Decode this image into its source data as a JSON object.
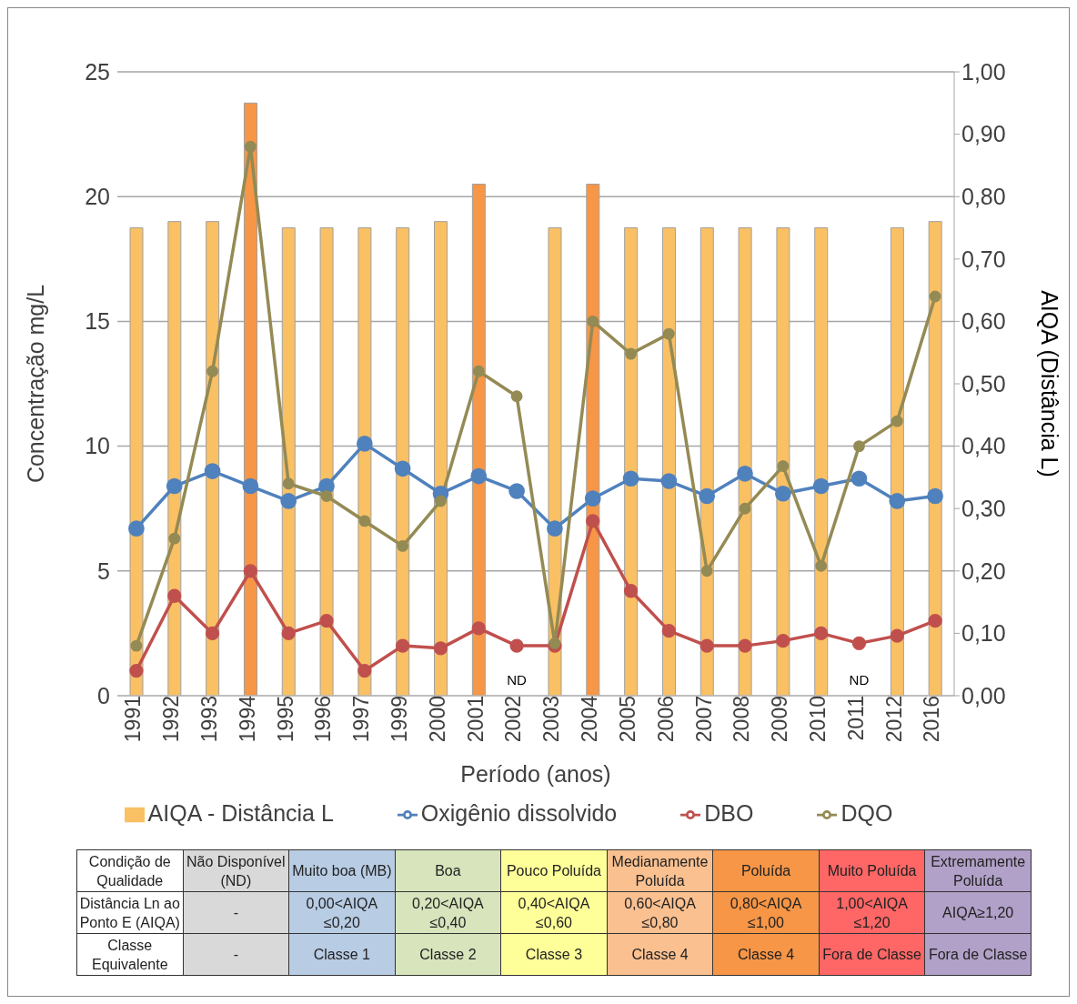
{
  "chart_data": {
    "type": "bar",
    "xlabel": "Período (anos)",
    "ylabel": "Concentração mg/L",
    "y2label": "AIQA (Distância L)",
    "categories": [
      "1991",
      "1992",
      "1993",
      "1994",
      "1995",
      "1996",
      "1997",
      "1999",
      "2000",
      "2001",
      "2002",
      "2003",
      "2004",
      "2005",
      "2006",
      "2007",
      "2008",
      "2009",
      "2010",
      "2011",
      "2012",
      "2016"
    ],
    "series": [
      {
        "name": "AIQA - Distância L",
        "axis": "y2",
        "color": "#fac064",
        "colors": [
          "#fac064",
          "#fac064",
          "#fac064",
          "#f79646",
          "#fac064",
          "#fac064",
          "#fac064",
          "#fac064",
          "#fac064",
          "#f79646",
          "#fac064",
          "#fac064",
          "#f79646",
          "#fac064",
          "#fac064",
          "#fac064",
          "#fac064",
          "#fac064",
          "#fac064",
          "#fac064",
          "#fac064",
          "#fac064"
        ],
        "values": [
          0.75,
          0.76,
          0.76,
          0.95,
          0.75,
          0.75,
          0.75,
          0.75,
          0.76,
          0.82,
          null,
          0.75,
          0.82,
          0.75,
          0.75,
          0.75,
          0.75,
          0.75,
          0.75,
          null,
          0.75,
          0.76
        ]
      },
      {
        "name": "Oxigênio dissolvido",
        "type": "line",
        "color": "#4f81bd",
        "values": [
          6.7,
          8.4,
          9.0,
          8.4,
          7.8,
          8.4,
          10.1,
          9.1,
          8.1,
          8.8,
          8.2,
          6.7,
          7.9,
          8.7,
          8.6,
          8.0,
          8.9,
          8.1,
          8.4,
          8.7,
          7.8,
          8.0
        ]
      },
      {
        "name": "DBO",
        "type": "line",
        "color": "#c0504d",
        "values": [
          1.0,
          4.0,
          2.5,
          5.0,
          2.5,
          3.0,
          1.0,
          2.0,
          1.9,
          2.7,
          2.0,
          2.0,
          7.0,
          4.2,
          2.6,
          2.0,
          2.0,
          2.2,
          2.5,
          2.1,
          2.4,
          3.0
        ]
      },
      {
        "name": "DQO",
        "type": "line",
        "color": "#948a54",
        "values": [
          2.0,
          6.3,
          13.0,
          22.0,
          8.5,
          8.0,
          7.0,
          6.0,
          7.8,
          13.0,
          12.0,
          2.1,
          15.0,
          13.7,
          14.5,
          5.0,
          7.5,
          9.2,
          5.2,
          10.0,
          11.0,
          16.0
        ]
      }
    ],
    "ylim": [
      0,
      25
    ],
    "yticks": [
      0,
      5,
      10,
      15,
      20,
      25
    ],
    "y2lim": [
      0,
      1
    ],
    "y2ticks": [
      {
        "value": 0,
        "label": "0,00"
      },
      {
        "value": 0.1,
        "label": "0,10"
      },
      {
        "value": 0.2,
        "label": "0,20"
      },
      {
        "value": 0.3,
        "label": "0,30"
      },
      {
        "value": 0.4,
        "label": "0,40"
      },
      {
        "value": 0.5,
        "label": "0,50"
      },
      {
        "value": 0.6,
        "label": "0,60"
      },
      {
        "value": 0.7,
        "label": "0,70"
      },
      {
        "value": 0.8,
        "label": "0,80"
      },
      {
        "value": 0.9,
        "label": "0,90"
      },
      {
        "value": 1,
        "label": "1,00"
      }
    ],
    "grid": "y",
    "legend": "bottom",
    "marker": "circle",
    "line_style": "solid",
    "annotations": [
      "ND",
      "ND",
      "Condição de Qualidade",
      "Não Disponível (ND)",
      "Muito boa (MB)",
      "Boa",
      "Pouco Poluída",
      "Medianamente Poluída",
      "Poluída",
      "Muito Poluída",
      "Extremamente Poluída",
      "Distância Ln ao Ponto E (AIQA)",
      "-",
      "0,00<AIQA ≤0,20",
      "0,20<AIQA ≤0,40",
      "0,40<AIQA ≤0,60",
      "0,60<AIQA ≤0,80",
      "0,80<AIQA ≤1,00",
      "1,00<AIQA ≤1,20",
      "AIQA≥1,20",
      "Classe Equivalente",
      "-",
      "Classe 1",
      "Classe 2",
      "Classe 3",
      "Classe 4",
      "Classe 4",
      "Fora de Classe",
      "Fora de Classe"
    ]
  }
}
